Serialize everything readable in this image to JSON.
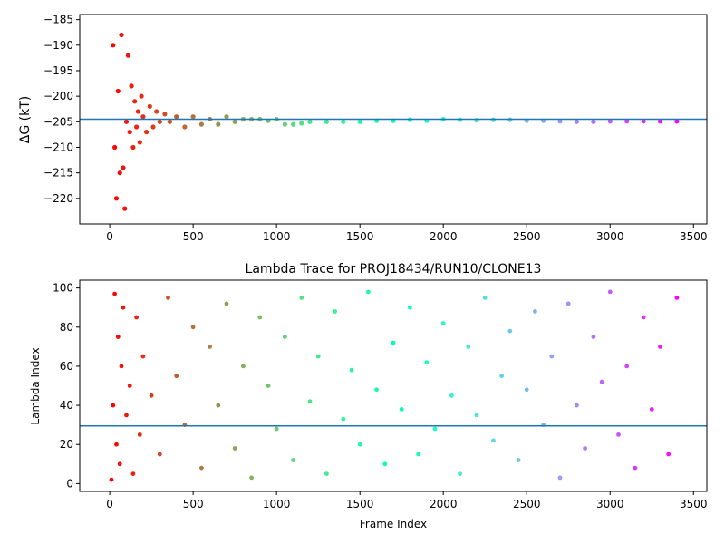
{
  "chart_data": [
    {
      "type": "scatter",
      "title": "",
      "xlabel": "",
      "ylabel": "ΔG (kT)",
      "xlim": [
        -180,
        3580
      ],
      "ylim": [
        -225,
        -184
      ],
      "xticks": [
        0,
        500,
        1000,
        1500,
        2000,
        2500,
        3000,
        3500
      ],
      "xtick_labels": [
        "0",
        "500",
        "1000",
        "1500",
        "2000",
        "2500",
        "3000",
        "3500"
      ],
      "yticks": [
        -185,
        -190,
        -195,
        -200,
        -205,
        -210,
        -215,
        -220
      ],
      "ytick_labels": [
        "−185",
        "−190",
        "−195",
        "−200",
        "−205",
        "−210",
        "−215",
        "−220"
      ],
      "hline": -204.5,
      "hline_color": "#1f77b4",
      "color_map": "rainbow (red at frame 0 to violet at frame 3400)",
      "series": [
        {
          "x": [
            20,
            30,
            40,
            50,
            60,
            70,
            80,
            90,
            100,
            110,
            120,
            130,
            140,
            150,
            160,
            170,
            180,
            190,
            200,
            220,
            240,
            260,
            280,
            300,
            330,
            360,
            400,
            450,
            500,
            550,
            600,
            650,
            700,
            750,
            800,
            850,
            900,
            950,
            1000,
            1050,
            1100,
            1150,
            1200,
            1300,
            1400,
            1500,
            1600,
            1700,
            1800,
            1900,
            2000,
            2100,
            2200,
            2300,
            2400,
            2500,
            2600,
            2700,
            2800,
            2900,
            3000,
            3100,
            3200,
            3300,
            3400
          ],
          "y": [
            -190,
            -210,
            -220,
            -199,
            -215,
            -188,
            -214,
            -222,
            -205,
            -192,
            -207,
            -198,
            -210,
            -201,
            -206,
            -203,
            -209,
            -200,
            -204,
            -207,
            -202,
            -206,
            -203,
            -205,
            -203.5,
            -205,
            -204,
            -206,
            -204,
            -205.5,
            -204.5,
            -205.5,
            -204,
            -205,
            -204.5,
            -204.5,
            -204.5,
            -204.8,
            -204.5,
            -205.5,
            -205.5,
            -205.3,
            -205,
            -205,
            -205,
            -205,
            -204.8,
            -204.8,
            -204.6,
            -204.8,
            -204.5,
            -204.6,
            -204.7,
            -204.6,
            -204.6,
            -204.8,
            -204.8,
            -204.9,
            -205,
            -205,
            -204.9,
            -204.9,
            -204.9,
            -204.9,
            -204.9
          ]
        }
      ]
    },
    {
      "type": "scatter",
      "title": "Lambda Trace for PROJ18434/RUN10/CLONE13",
      "xlabel": "Frame Index",
      "ylabel": "Lambda Index",
      "xlim": [
        -180,
        3580
      ],
      "ylim": [
        -4,
        104
      ],
      "xticks": [
        0,
        500,
        1000,
        1500,
        2000,
        2500,
        3000,
        3500
      ],
      "xtick_labels": [
        "0",
        "500",
        "1000",
        "1500",
        "2000",
        "2500",
        "3000",
        "3500"
      ],
      "yticks": [
        0,
        20,
        40,
        60,
        80,
        100
      ],
      "ytick_labels": [
        "0",
        "20",
        "40",
        "60",
        "80",
        "100"
      ],
      "hline": 29.5,
      "hline_color": "#1f77b4",
      "color_map": "rainbow (red at frame 0 to violet at frame 3400)",
      "series": [
        {
          "x": [
            10,
            20,
            30,
            40,
            50,
            60,
            70,
            80,
            100,
            120,
            140,
            160,
            180,
            200,
            250,
            300,
            350,
            400,
            450,
            500,
            550,
            600,
            650,
            700,
            750,
            800,
            850,
            900,
            950,
            1000,
            1050,
            1100,
            1150,
            1200,
            1250,
            1300,
            1350,
            1400,
            1450,
            1500,
            1550,
            1600,
            1650,
            1700,
            1750,
            1800,
            1850,
            1900,
            1950,
            2000,
            2050,
            2100,
            2150,
            2200,
            2250,
            2300,
            2350,
            2400,
            2450,
            2500,
            2550,
            2600,
            2650,
            2700,
            2750,
            2800,
            2850,
            2900,
            2950,
            3000,
            3050,
            3100,
            3150,
            3200,
            3250,
            3300,
            3350,
            3400
          ],
          "y": [
            2,
            40,
            97,
            20,
            75,
            10,
            60,
            90,
            35,
            50,
            5,
            85,
            25,
            65,
            45,
            15,
            95,
            55,
            30,
            80,
            8,
            70,
            40,
            92,
            18,
            60,
            3,
            85,
            50,
            28,
            75,
            12,
            95,
            42,
            65,
            5,
            88,
            33,
            58,
            20,
            98,
            48,
            10,
            72,
            38,
            90,
            15,
            62,
            28,
            82,
            45,
            5,
            70,
            35,
            95,
            22,
            55,
            78,
            12,
            48,
            88,
            30,
            65,
            3,
            92,
            40,
            18,
            75,
            52,
            98,
            25,
            60,
            8,
            85,
            38,
            70,
            15,
            95
          ]
        }
      ]
    }
  ]
}
